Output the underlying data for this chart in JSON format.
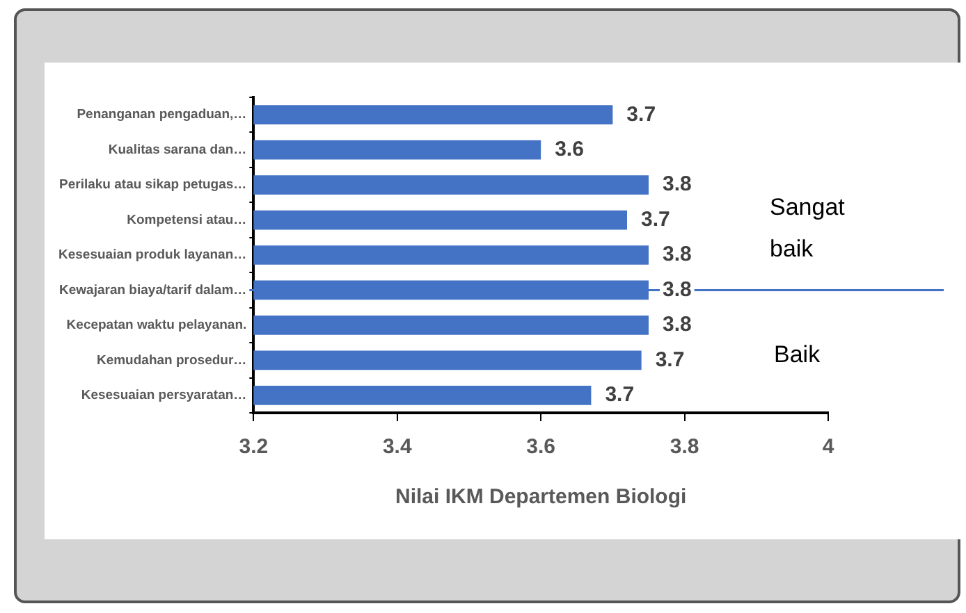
{
  "chart_data": {
    "type": "bar",
    "orientation": "horizontal",
    "categories": [
      "Penanganan pengaduan,…",
      "Kualitas sarana dan…",
      "Perilaku atau sikap petugas…",
      "Kompetensi atau…",
      "Kesesuaian produk layanan…",
      "Kewajaran biaya/tarif dalam…",
      "Kecepatan waktu pelayanan.",
      "Kemudahan prosedur…",
      "Kesesuaian persyaratan…"
    ],
    "values": [
      3.7,
      3.6,
      3.75,
      3.72,
      3.75,
      3.75,
      3.75,
      3.74,
      3.67
    ],
    "value_labels": [
      "3.7",
      "3.6",
      "3.8",
      "3.7",
      "3.8",
      "3.8",
      "3.8",
      "3.7",
      "3.7"
    ],
    "color": "#4472c4",
    "xlim": [
      3.2,
      4
    ],
    "xticks": [
      3.2,
      3.4,
      3.6,
      3.8,
      4
    ],
    "xlabel": "Nilai IKM Departemen Biologi",
    "ref_lines": [
      {
        "axis": "y",
        "value": "Kewajaran biaya/tarif dalam…",
        "color": "#4472c4"
      }
    ],
    "annotations": [
      "Sangat baik",
      "Baik"
    ]
  }
}
